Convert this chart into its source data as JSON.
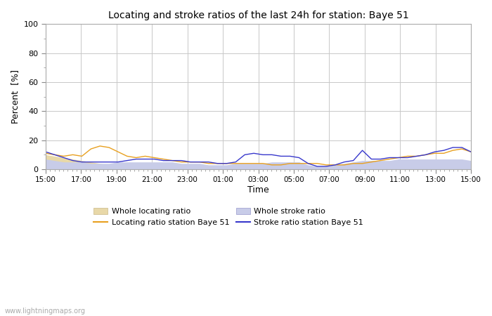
{
  "title": "Locating and stroke ratios of the last 24h for station: Baye 51",
  "xlabel": "Time",
  "ylabel": "Percent  [%]",
  "watermark": "www.lightningmaps.org",
  "xlim": [
    0,
    48
  ],
  "ylim": [
    0,
    100
  ],
  "yticks": [
    0,
    20,
    40,
    60,
    80,
    100
  ],
  "xtick_labels": [
    "15:00",
    "17:00",
    "19:00",
    "21:00",
    "23:00",
    "01:00",
    "03:00",
    "05:00",
    "07:00",
    "09:00",
    "11:00",
    "13:00",
    "15:00"
  ],
  "xtick_positions": [
    0,
    4,
    8,
    12,
    16,
    20,
    24,
    28,
    32,
    36,
    40,
    44,
    48
  ],
  "bg_color": "#ffffff",
  "plot_bg_color": "#ffffff",
  "grid_color": "#c8c8c8",
  "whole_locating_color": "#e8d8a8",
  "whole_stroke_color": "#c8cce8",
  "locating_line_color": "#e8a020",
  "stroke_line_color": "#3838cc",
  "whole_locating_ratio": [
    10,
    9,
    8,
    7,
    6,
    5,
    4,
    3,
    2,
    2,
    2,
    2,
    1,
    1,
    1,
    1,
    1,
    1,
    1,
    1,
    1,
    1,
    1,
    1,
    1,
    1,
    1,
    1,
    1,
    1,
    1,
    1,
    1,
    1,
    1,
    2,
    2,
    2,
    2,
    2,
    2,
    2,
    3,
    3,
    3,
    3,
    3,
    3
  ],
  "whole_stroke_ratio": [
    7,
    6,
    5,
    5,
    5,
    4,
    4,
    4,
    5,
    5,
    5,
    5,
    5,
    5,
    5,
    4,
    4,
    4,
    3,
    3,
    3,
    4,
    4,
    4,
    4,
    5,
    5,
    5,
    5,
    3,
    2,
    2,
    3,
    4,
    5,
    6,
    6,
    6,
    6,
    7,
    7,
    7,
    7,
    7,
    7,
    7,
    7,
    6
  ],
  "locating_station": [
    11,
    10,
    9,
    10,
    9,
    14,
    16,
    15,
    12,
    9,
    8,
    9,
    8,
    7,
    6,
    5,
    5,
    5,
    4,
    4,
    4,
    4,
    4,
    4,
    4,
    3,
    3,
    4,
    4,
    4,
    4,
    3,
    3,
    3,
    4,
    4,
    5,
    6,
    7,
    8,
    9,
    9,
    10,
    11,
    11,
    13,
    14,
    12
  ],
  "stroke_station": [
    12,
    10,
    8,
    6,
    5,
    5,
    5,
    5,
    5,
    6,
    7,
    7,
    7,
    6,
    6,
    6,
    5,
    5,
    5,
    4,
    4,
    5,
    10,
    11,
    10,
    10,
    9,
    9,
    8,
    4,
    2,
    2,
    3,
    5,
    6,
    13,
    7,
    7,
    8,
    8,
    8,
    9,
    10,
    12,
    13,
    15,
    15,
    12
  ]
}
